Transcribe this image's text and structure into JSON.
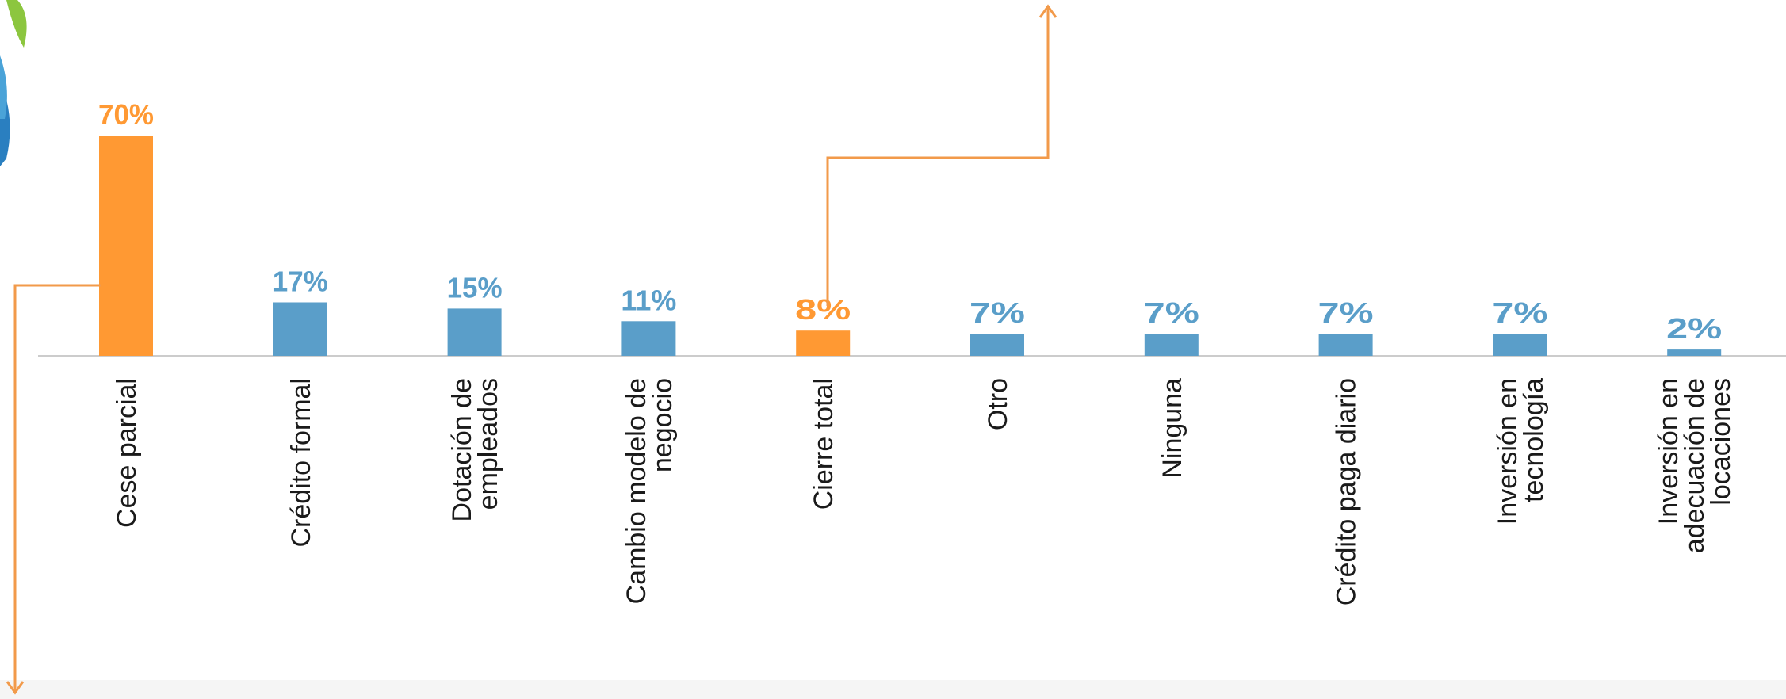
{
  "chart_data": {
    "type": "bar",
    "categories": [
      "Cese parcial",
      "Crédito formal",
      "Dotación de empleados",
      "Cambio modelo de negocio",
      "Cierre total",
      "Otro",
      "Ninguna",
      "Crédito paga diario",
      "Inversión en tecnología",
      "Inversión en adecuación de locaciones"
    ],
    "category_lines": [
      [
        "Cese parcial"
      ],
      [
        "Crédito formal"
      ],
      [
        "Dotación de",
        "empleados"
      ],
      [
        "Cambio modelo de",
        "negocio"
      ],
      [
        "Cierre total"
      ],
      [
        "Otro"
      ],
      [
        "Ninguna"
      ],
      [
        "Crédito paga diario"
      ],
      [
        "Inversión en",
        "tecnología"
      ],
      [
        "Inversión en",
        "adecuación de",
        "locaciones"
      ]
    ],
    "values": [
      70,
      17,
      15,
      11,
      8,
      7,
      7,
      7,
      7,
      2
    ],
    "data_labels": [
      "70%",
      "17%",
      "15%",
      "11%",
      "8%",
      "7%",
      "7%",
      "7%",
      "7%",
      "2%"
    ],
    "highlighted": [
      0,
      4
    ],
    "ylim": [
      0,
      70
    ],
    "grid": false,
    "legend": "none",
    "colors": {
      "bar": "#5a9ec9",
      "highlight": "#ff9933",
      "label": "#5a9ec9",
      "highlight_label": "#ff9933",
      "axis": "#cccccc",
      "category_text": "#1a1a1a",
      "arrow": "#f29a4a"
    }
  }
}
